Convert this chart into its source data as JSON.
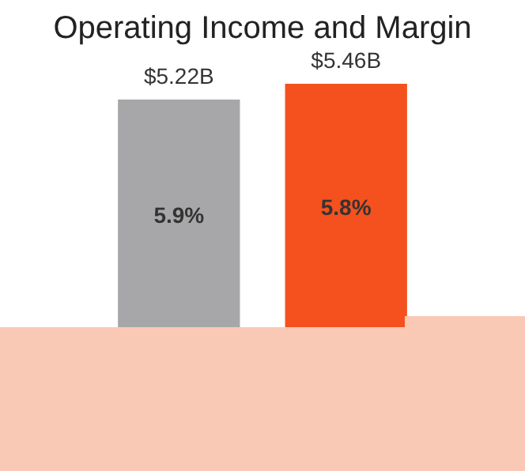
{
  "chart_data": {
    "type": "bar",
    "title": "Operating Income and Margin",
    "categories": [
      null,
      null
    ],
    "values": [
      5.22,
      5.46
    ],
    "colors": [
      "#a7a7a9",
      "#f4511e"
    ],
    "value_labels": [
      "$5.22B",
      "$5.46B"
    ],
    "annotations": [
      "5.9%",
      "5.8%"
    ]
  }
}
